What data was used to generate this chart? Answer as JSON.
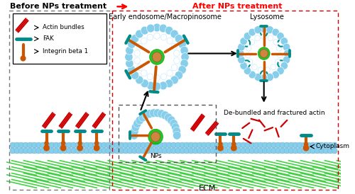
{
  "title_left": "Before NPs treatment",
  "title_right": "After NPs treatment",
  "label_actin": "Actin bundles",
  "label_fak": "FAK",
  "label_integrin": "Integrin beta 1",
  "label_endosome": "Early endosome/Macropinosome",
  "label_lysosome": "Lysosome",
  "label_debundled": "De-bundled and fractured actin",
  "label_cytoplasm": "Cytoplasm",
  "label_NPs": "NPs",
  "label_ECM": "ECM",
  "color_actin": "#CC0000",
  "color_fak": "#008B8B",
  "color_integrin": "#CC5500",
  "color_membrane_blue": "#87CEEB",
  "color_ecm_green": "#32CD32",
  "color_np_core": "#CD853F",
  "color_np_ring": "#00AA00",
  "color_arrow_red": "#FF0000",
  "color_border_left": "#777777",
  "color_border_right": "#CC0000",
  "color_title_right": "#FF0000",
  "bg_color": "#FFFFFF"
}
